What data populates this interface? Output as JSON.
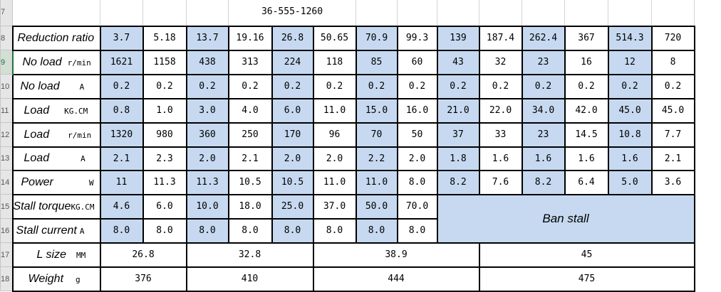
{
  "sheet": {
    "row_numbers": [
      "7",
      "8",
      "9",
      "10",
      "11",
      "12",
      "13",
      "14",
      "15",
      "16",
      "17",
      "18"
    ],
    "active_row": "9",
    "title": "36-555-1260",
    "reduction_ratio": {
      "label": "Reduction ratio",
      "unit": "",
      "values": [
        "3.7",
        "5.18",
        "13.7",
        "19.16",
        "26.8",
        "50.65",
        "70.9",
        "99.3",
        "139",
        "187.4",
        "262.4",
        "367",
        "514.3",
        "720"
      ]
    },
    "no_load_speed": {
      "label": "No load",
      "unit": "r/min",
      "values": [
        "1621",
        "1158",
        "438",
        "313",
        "224",
        "118",
        "85",
        "60",
        "43",
        "32",
        "23",
        "16",
        "12",
        "8"
      ]
    },
    "no_load_current": {
      "label": "No load",
      "unit": "A",
      "values": [
        "0.2",
        "0.2",
        "0.2",
        "0.2",
        "0.2",
        "0.2",
        "0.2",
        "0.2",
        "0.2",
        "0.2",
        "0.2",
        "0.2",
        "0.2",
        "0.2"
      ]
    },
    "load_torque": {
      "label": "Load",
      "unit": "KG.CM",
      "values": [
        "0.8",
        "1.0",
        "3.0",
        "4.0",
        "6.0",
        "11.0",
        "15.0",
        "16.0",
        "21.0",
        "22.0",
        "34.0",
        "42.0",
        "45.0",
        "45.0"
      ]
    },
    "load_speed": {
      "label": "Load",
      "unit": "r/min",
      "values": [
        "1320",
        "980",
        "360",
        "250",
        "170",
        "96",
        "70",
        "50",
        "37",
        "33",
        "23",
        "14.5",
        "10.8",
        "7.7"
      ]
    },
    "load_current": {
      "label": "Load",
      "unit": "A",
      "values": [
        "2.1",
        "2.3",
        "2.0",
        "2.1",
        "2.0",
        "2.0",
        "2.2",
        "2.0",
        "1.8",
        "1.6",
        "1.6",
        "1.6",
        "1.6",
        "2.1"
      ]
    },
    "power": {
      "label": "Power",
      "unit": "W",
      "values": [
        "11",
        "11.3",
        "11.3",
        "10.5",
        "10.5",
        "11.0",
        "11.0",
        "8.0",
        "8.2",
        "7.6",
        "8.2",
        "6.4",
        "5.0",
        "3.6"
      ]
    },
    "stall_torque": {
      "label": "Stall torque",
      "unit": "KG.CM",
      "values": [
        "4.6",
        "6.0",
        "10.0",
        "18.0",
        "25.0",
        "37.0",
        "50.0",
        "70.0"
      ]
    },
    "stall_current": {
      "label": "Stall current",
      "unit": "A",
      "values": [
        "8.0",
        "8.0",
        "8.0",
        "8.0",
        "8.0",
        "8.0",
        "8.0",
        "8.0"
      ]
    },
    "ban_stall": "Ban stall",
    "l_size": {
      "label": "L size",
      "unit": "MM",
      "values": [
        "26.8",
        "32.8",
        "38.9",
        "45"
      ]
    },
    "weight": {
      "label": "Weight",
      "unit": "g",
      "values": [
        "376",
        "410",
        "444",
        "475"
      ]
    },
    "colors": {
      "highlight": "#c6d9f0",
      "row_header_bg": "#e6e6e6",
      "active_row": "#217346"
    }
  }
}
